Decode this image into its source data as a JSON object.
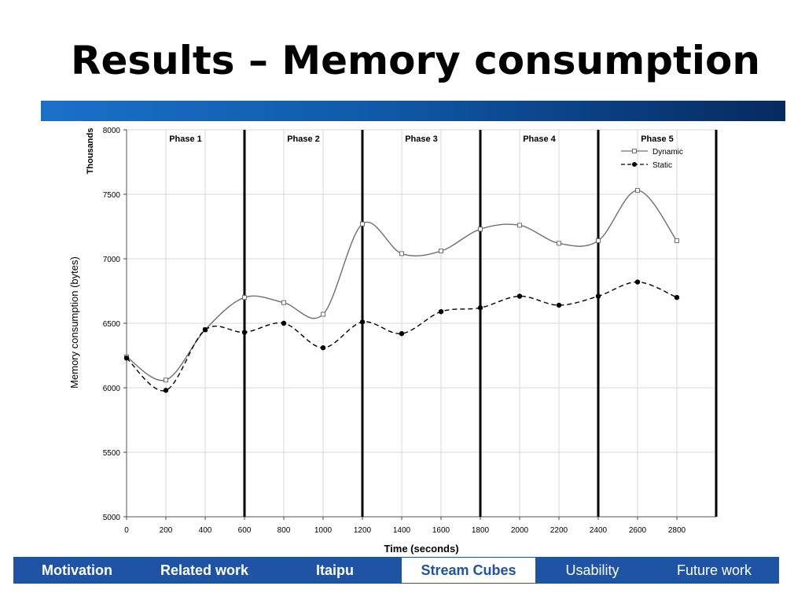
{
  "slide": {
    "title": "Results – Memory consumption"
  },
  "nav": {
    "items": [
      {
        "label": "Motivation",
        "bold": true,
        "active": false
      },
      {
        "label": "Related work",
        "bold": true,
        "active": false
      },
      {
        "label": "Itaipu",
        "bold": true,
        "active": false
      },
      {
        "label": "Stream Cubes",
        "bold": true,
        "active": true
      },
      {
        "label": "Usability",
        "bold": false,
        "active": false
      },
      {
        "label": "Future work",
        "bold": false,
        "active": false
      }
    ]
  },
  "chart_data": {
    "type": "line",
    "title": "",
    "xlabel": "Time (seconds)",
    "ylabel": "Memory consumption (bytes)",
    "yunit_label": "Thousands",
    "xlim": [
      0,
      3000
    ],
    "ylim": [
      5000,
      8000
    ],
    "x_ticks": [
      0,
      200,
      400,
      600,
      800,
      1000,
      1200,
      1400,
      1600,
      1800,
      2000,
      2200,
      2400,
      2600,
      2800
    ],
    "y_ticks": [
      5000,
      5500,
      6000,
      6500,
      7000,
      7500,
      8000
    ],
    "grid": true,
    "legend_position": "top-right",
    "phase_lines": [
      600,
      1200,
      1800,
      2400,
      3000
    ],
    "phases": [
      {
        "label": "Phase 1",
        "x": 300
      },
      {
        "label": "Phase 2",
        "x": 900
      },
      {
        "label": "Phase 3",
        "x": 1500
      },
      {
        "label": "Phase 4",
        "x": 2100
      },
      {
        "label": "Phase 5",
        "x": 2700
      }
    ],
    "x": [
      0,
      200,
      400,
      600,
      800,
      1000,
      1200,
      1400,
      1600,
      1800,
      2000,
      2200,
      2400,
      2600,
      2800
    ],
    "series": [
      {
        "name": "Dynamic",
        "line_style": "solid",
        "marker": "open-square",
        "color": "#707070",
        "values": [
          6240,
          6060,
          6450,
          6700,
          6660,
          6570,
          7270,
          7040,
          7060,
          7230,
          7260,
          7120,
          7140,
          7530,
          7140
        ]
      },
      {
        "name": "Static",
        "line_style": "dashed",
        "marker": "filled-circle",
        "color": "#000000",
        "values": [
          6230,
          5980,
          6450,
          6430,
          6500,
          6310,
          6510,
          6420,
          6590,
          6620,
          6710,
          6640,
          6710,
          6820,
          6700
        ]
      }
    ]
  }
}
